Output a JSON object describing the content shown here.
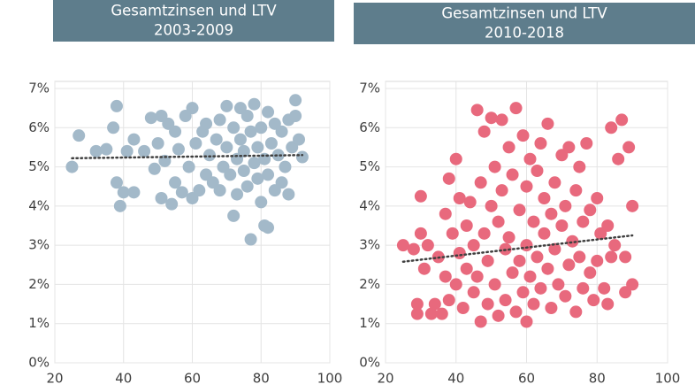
{
  "chart_data": [
    {
      "type": "scatter",
      "title": "Gesamtzinsen und LTV",
      "subtitle": "2003-2009",
      "color": "#a3b9c9",
      "header_color": "#5e7d8c",
      "x": [
        25,
        27,
        32,
        35,
        37,
        38,
        38,
        39,
        40,
        41,
        43,
        43,
        46,
        48,
        49,
        50,
        51,
        51,
        52,
        53,
        54,
        55,
        55,
        56,
        57,
        58,
        59,
        60,
        60,
        61,
        62,
        63,
        64,
        64,
        65,
        66,
        67,
        68,
        68,
        69,
        70,
        70,
        71,
        72,
        72,
        73,
        73,
        74,
        74,
        75,
        75,
        76,
        76,
        77,
        77,
        78,
        78,
        79,
        79,
        80,
        80,
        81,
        81,
        82,
        82,
        82,
        83,
        84,
        84,
        85,
        86,
        86,
        87,
        88,
        88,
        89,
        90,
        90,
        91,
        92
      ],
      "values": [
        5.0,
        5.8,
        5.4,
        5.45,
        6.0,
        6.55,
        4.6,
        4.0,
        4.35,
        5.4,
        4.35,
        5.7,
        5.4,
        6.25,
        4.95,
        5.6,
        6.3,
        4.2,
        5.15,
        6.1,
        4.05,
        4.6,
        5.9,
        5.45,
        4.35,
        6.3,
        5.0,
        6.5,
        4.2,
        5.6,
        4.4,
        5.9,
        6.1,
        4.8,
        5.3,
        4.6,
        5.7,
        6.2,
        4.4,
        5.0,
        6.55,
        5.5,
        4.8,
        3.75,
        6.0,
        5.2,
        4.3,
        6.5,
        5.7,
        4.9,
        5.4,
        6.3,
        4.5,
        3.15,
        5.9,
        5.1,
        6.6,
        4.7,
        5.5,
        6.0,
        4.1,
        3.5,
        5.2,
        3.45,
        6.4,
        4.8,
        5.6,
        6.1,
        4.4,
        5.3,
        5.9,
        4.6,
        5.0,
        6.2,
        4.3,
        5.5,
        6.7,
        6.3,
        5.7,
        5.25
      ],
      "trendline": {
        "x": [
          25,
          92
        ],
        "values": [
          5.22,
          5.3
        ],
        "color": "#404040"
      },
      "xlim": [
        20,
        100
      ],
      "xticks": [
        20,
        40,
        60,
        80,
        100
      ],
      "ylim": [
        0,
        7
      ],
      "yticks": [
        {
          "value": 0,
          "label": "0%"
        },
        {
          "value": 1,
          "label": "1%"
        },
        {
          "value": 2,
          "label": "2%"
        },
        {
          "value": 3,
          "label": "3%"
        },
        {
          "value": 4,
          "label": "4%"
        },
        {
          "value": 5,
          "label": "5%"
        },
        {
          "value": 6,
          "label": "6%"
        },
        {
          "value": 7,
          "label": "7%"
        }
      ],
      "grid": true
    },
    {
      "type": "scatter",
      "title": "Gesamtzinsen und LTV",
      "subtitle": "2010-2018",
      "color": "#e8697d",
      "header_color": "#5e7d8c",
      "x": [
        25,
        28,
        29,
        29,
        30,
        30,
        31,
        32,
        33,
        34,
        35,
        36,
        37,
        37,
        38,
        38,
        39,
        40,
        40,
        41,
        41,
        42,
        43,
        43,
        44,
        45,
        45,
        46,
        46,
        47,
        47,
        48,
        48,
        49,
        49,
        50,
        50,
        51,
        51,
        52,
        52,
        53,
        53,
        54,
        54,
        55,
        55,
        56,
        56,
        57,
        57,
        58,
        58,
        59,
        59,
        60,
        60,
        60,
        61,
        61,
        62,
        62,
        63,
        63,
        64,
        64,
        65,
        65,
        66,
        66,
        67,
        67,
        68,
        68,
        69,
        70,
        70,
        71,
        71,
        72,
        72,
        73,
        74,
        74,
        75,
        75,
        76,
        76,
        77,
        78,
        78,
        79,
        80,
        80,
        81,
        82,
        83,
        83,
        84,
        84,
        85,
        86,
        87,
        88,
        88,
        89,
        90,
        90
      ],
      "values": [
        3.0,
        2.9,
        1.25,
        1.5,
        4.25,
        3.3,
        2.4,
        3.0,
        1.25,
        1.5,
        2.7,
        1.25,
        3.8,
        2.2,
        4.7,
        1.6,
        3.3,
        5.2,
        2.0,
        4.2,
        2.8,
        1.4,
        3.5,
        2.4,
        4.1,
        1.8,
        3.0,
        6.45,
        2.2,
        4.6,
        1.05,
        5.9,
        3.3,
        2.6,
        1.5,
        6.25,
        4.0,
        5.0,
        2.0,
        3.6,
        1.2,
        6.2,
        4.4,
        2.9,
        1.6,
        5.5,
        3.2,
        2.3,
        4.8,
        1.3,
        6.5,
        3.9,
        2.6,
        5.8,
        1.8,
        4.5,
        3.0,
        1.05,
        5.2,
        2.2,
        3.6,
        1.5,
        4.9,
        2.7,
        5.6,
        1.9,
        3.3,
        4.2,
        2.4,
        6.1,
        3.8,
        1.4,
        4.6,
        2.9,
        2.0,
        5.3,
        3.5,
        1.7,
        4.0,
        2.5,
        5.5,
        3.1,
        1.3,
        4.4,
        2.7,
        5.0,
        3.6,
        1.9,
        5.6,
        2.3,
        3.9,
        1.6,
        4.2,
        2.6,
        3.3,
        1.9,
        1.5,
        3.5,
        6.0,
        2.7,
        3.0,
        5.2,
        6.2,
        1.8,
        2.7,
        5.5,
        4.0,
        2.0
      ],
      "trendline": {
        "x": [
          25,
          90
        ],
        "values": [
          2.58,
          3.25
        ],
        "color": "#404040"
      },
      "xlim": [
        20,
        100
      ],
      "xticks": [
        20,
        40,
        60,
        80,
        100
      ],
      "ylim": [
        0,
        7
      ],
      "yticks": [
        {
          "value": 0,
          "label": "0%"
        },
        {
          "value": 1,
          "label": "1%"
        },
        {
          "value": 2,
          "label": "2%"
        },
        {
          "value": 3,
          "label": "3%"
        },
        {
          "value": 4,
          "label": "4%"
        },
        {
          "value": 5,
          "label": "5%"
        },
        {
          "value": 6,
          "label": "6%"
        },
        {
          "value": 7,
          "label": "7%"
        }
      ],
      "grid": true
    }
  ]
}
